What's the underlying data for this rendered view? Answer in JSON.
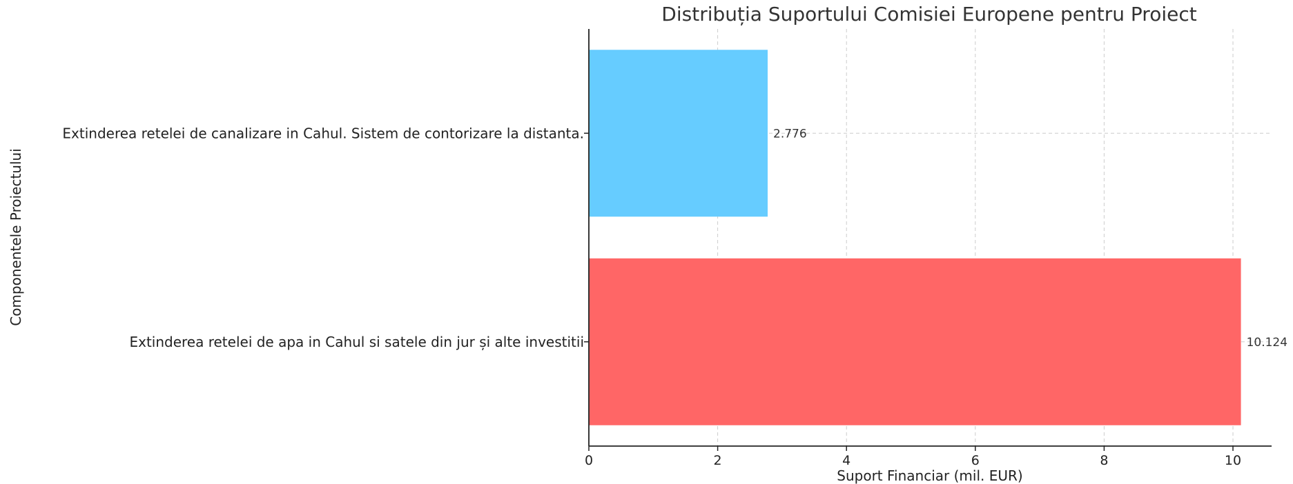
{
  "chart_data": {
    "type": "bar",
    "orientation": "horizontal",
    "title": "Distribuția Suportului Comisiei Europene pentru Proiect",
    "xlabel": "Suport Financiar (mil. EUR)",
    "ylabel": "Componentele Proiectului",
    "categories": [
      "Extinderea retelei de apa in Cahul si satele din jur și alte investitii",
      "Extinderea retelei de canalizare in Cahul. Sistem de contorizare la distanta."
    ],
    "values": [
      10.124,
      2.776
    ],
    "data_labels": [
      "10.124",
      "2.776"
    ],
    "colors": [
      "#ff6666",
      "#66ccff"
    ],
    "xlim": [
      0,
      10.6
    ],
    "xticks": [
      0,
      2,
      4,
      6,
      8,
      10
    ],
    "grid": true
  }
}
